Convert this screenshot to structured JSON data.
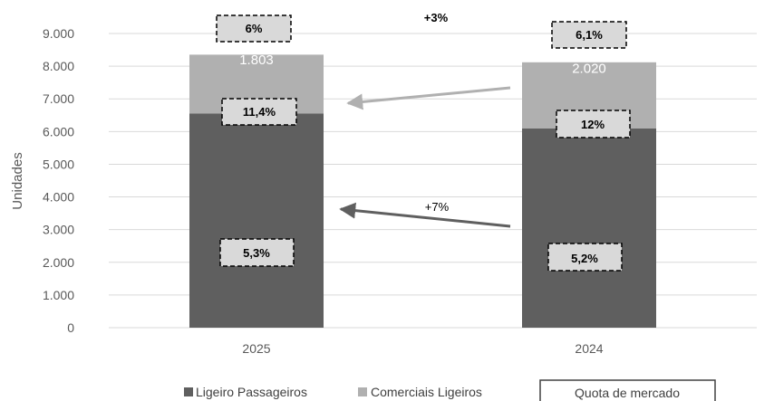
{
  "chart_data": {
    "type": "bar",
    "stacked": true,
    "categories": [
      "2025",
      "2024"
    ],
    "series": [
      {
        "name": "Ligeiro Passageiros",
        "values": [
          6549,
          6099
        ],
        "labels": [
          "6.549",
          "6.099"
        ],
        "color": "#5f5f5f"
      },
      {
        "name": "Comerciais Ligeiros",
        "values": [
          1803,
          2020
        ],
        "labels": [
          "1.803",
          "2.020"
        ],
        "color": "#b0b0b0"
      }
    ],
    "market_share": {
      "name": "Quota de mercado",
      "total": [
        "6%",
        "6,1%"
      ],
      "comerciais": [
        "11,4%",
        "12%"
      ],
      "passageiros": [
        "5,3%",
        "5,2%"
      ]
    },
    "annotations": {
      "total_growth": "+3%",
      "passageiros_growth": "+7%"
    },
    "ylabel": "Unidades",
    "ylim": [
      0,
      9000
    ],
    "yticks": [
      0,
      1000,
      2000,
      3000,
      4000,
      5000,
      6000,
      7000,
      8000,
      9000
    ],
    "ytick_labels": [
      "0",
      "1.000",
      "2.000",
      "3.000",
      "4.000",
      "5.000",
      "6.000",
      "7.000",
      "8.000",
      "9.000"
    ],
    "grid": true,
    "legend_position": "bottom",
    "colors": {
      "passageiros": "#5f5f5f",
      "comerciais": "#b0b0b0",
      "box_fill": "#d9d9d9",
      "arrow_light": "#b0b0b0",
      "arrow_dark": "#5f5f5f"
    }
  }
}
